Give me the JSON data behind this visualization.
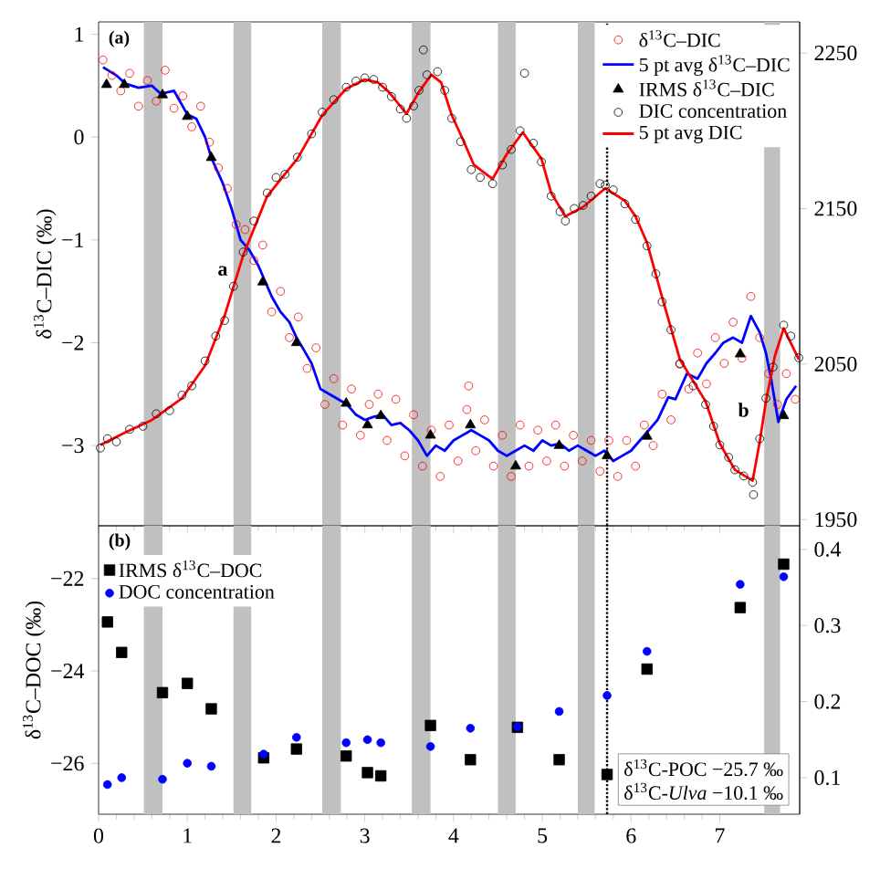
{
  "chart_data": [
    {
      "type": "line",
      "ylabel": "δ$^{13}$C–DIC (‰)",
      "xlim": [
        0,
        7.9
      ],
      "xticks": [
        0,
        1,
        2,
        3,
        4,
        5,
        6,
        7
      ],
      "ylim": [
        -3.78,
        1.12
      ],
      "yticks": [
        1,
        0,
        {
          "value": -1,
          "label": "−1"
        },
        {
          "value": -2,
          "label": "−2"
        },
        {
          "value": -3,
          "label": "−3"
        }
      ],
      "y2lim": [
        1946,
        2270
      ],
      "y2ticks": [
        1950,
        2050,
        2150,
        2250
      ],
      "tick_labels": "y",
      "legend": "top right",
      "annotations": [
        "(a)",
        "a",
        "b"
      ],
      "bands": [
        {
          "axis": "x",
          "from": 0.51,
          "to": 0.72,
          "color": "#c0c0c0"
        },
        {
          "axis": "x",
          "from": 1.52,
          "to": 1.72,
          "color": "#c0c0c0"
        },
        {
          "axis": "x",
          "from": 2.52,
          "to": 2.73,
          "color": "#c0c0c0"
        },
        {
          "axis": "x",
          "from": 3.53,
          "to": 3.74,
          "color": "#c0c0c0"
        },
        {
          "axis": "x",
          "from": 4.5,
          "to": 4.7,
          "color": "#c0c0c0"
        },
        {
          "axis": "x",
          "from": 5.4,
          "to": 5.59,
          "color": "#c0c0c0"
        },
        {
          "axis": "x",
          "from": 7.5,
          "to": 7.68,
          "color": "#c0c0c0"
        }
      ],
      "ref_lines": [
        {
          "axis": "x",
          "value": 5.73,
          "color": "#000000",
          "line_style": "dotted"
        }
      ],
      "series": [
        {
          "name": "δ$^{13}$C–DIC",
          "type": "scatter",
          "marker": "circle",
          "color": "#ff0000",
          "x": [
            0.05,
            0.15,
            0.25,
            0.35,
            0.45,
            0.55,
            0.65,
            0.75,
            0.85,
            0.95,
            1.05,
            1.15,
            1.25,
            1.35,
            1.45,
            1.55,
            1.65,
            1.75,
            1.85,
            1.95,
            2.05,
            2.15,
            2.25,
            2.35,
            2.45,
            2.55,
            2.65,
            2.75,
            2.85,
            2.95,
            3.05,
            3.15,
            3.25,
            3.35,
            3.45,
            3.55,
            3.65,
            3.75,
            3.85,
            3.95,
            4.05,
            4.15,
            4.17,
            4.25,
            4.35,
            4.45,
            4.55,
            4.65,
            4.75,
            4.85,
            4.95,
            5.05,
            5.15,
            5.25,
            5.35,
            5.45,
            5.55,
            5.65,
            5.75,
            5.85,
            5.95,
            6.05,
            6.15,
            6.25,
            6.35,
            6.45,
            6.55,
            6.65,
            6.75,
            6.85,
            6.95,
            7.05,
            7.15,
            7.25,
            7.35,
            7.45,
            7.55,
            7.65,
            7.75,
            7.85
          ],
          "values": [
            0.75,
            0.6,
            0.45,
            0.62,
            0.3,
            0.55,
            0.35,
            0.65,
            0.28,
            0.4,
            0.1,
            0.3,
            -0.05,
            -0.3,
            -0.5,
            -0.85,
            -0.9,
            -1.2,
            -1.05,
            -1.7,
            -1.5,
            -1.95,
            -1.75,
            -2.25,
            -2.05,
            -2.6,
            -2.35,
            -2.8,
            -2.45,
            -2.9,
            -2.6,
            -2.5,
            -2.95,
            -2.55,
            -3.1,
            -2.7,
            -3.2,
            -2.85,
            -3.3,
            -2.8,
            -3.15,
            -2.65,
            -2.42,
            -3.05,
            -2.75,
            -3.2,
            -2.9,
            -3.3,
            -2.8,
            -3.2,
            -2.85,
            -3.15,
            -2.8,
            -3.2,
            -2.9,
            -3.15,
            -2.95,
            -3.25,
            -2.95,
            -3.3,
            -2.95,
            -3.2,
            -2.8,
            -3.0,
            -2.5,
            -2.75,
            -2.2,
            -2.45,
            -2.1,
            -2.4,
            -1.95,
            -2.2,
            -1.8,
            -2.15,
            -1.55,
            -1.95,
            -2.3,
            -2.6,
            -2.3,
            -2.55
          ]
        },
        {
          "name": "5 pt avg δ$^{13}$C–DIC",
          "type": "line",
          "marker": "none",
          "color": "#0000ff",
          "x": [
            0.05,
            0.2,
            0.3,
            0.45,
            0.6,
            0.7,
            0.85,
            1.0,
            1.1,
            1.2,
            1.27,
            1.4,
            1.5,
            1.6,
            1.7,
            1.8,
            1.85,
            1.95,
            2.05,
            2.15,
            2.23,
            2.3,
            2.4,
            2.5,
            2.6,
            2.7,
            2.8,
            2.9,
            3.0,
            3.1,
            3.2,
            3.3,
            3.4,
            3.5,
            3.6,
            3.7,
            3.8,
            3.9,
            4.0,
            4.1,
            4.2,
            4.3,
            4.4,
            4.5,
            4.6,
            4.7,
            4.8,
            4.9,
            5.0,
            5.1,
            5.2,
            5.3,
            5.4,
            5.5,
            5.6,
            5.7,
            5.8,
            5.9,
            6.0,
            6.1,
            6.2,
            6.3,
            6.42,
            6.5,
            6.63,
            6.75,
            6.85,
            6.95,
            7.04,
            7.15,
            7.25,
            7.35,
            7.45,
            7.52,
            7.58,
            7.66,
            7.75,
            7.86
          ],
          "values": [
            0.68,
            0.6,
            0.52,
            0.48,
            0.5,
            0.42,
            0.45,
            0.22,
            0.18,
            0.0,
            -0.2,
            -0.45,
            -0.7,
            -1.0,
            -1.1,
            -1.25,
            -1.35,
            -1.55,
            -1.7,
            -1.8,
            -1.95,
            -2.05,
            -2.2,
            -2.45,
            -2.5,
            -2.55,
            -2.6,
            -2.7,
            -2.75,
            -2.72,
            -2.7,
            -2.8,
            -2.78,
            -2.85,
            -2.95,
            -3.1,
            -3.0,
            -3.05,
            -2.95,
            -2.9,
            -2.85,
            -2.9,
            -2.95,
            -3.05,
            -3.1,
            -3.05,
            -3.0,
            -3.05,
            -2.95,
            -3.0,
            -2.98,
            -3.05,
            -3.0,
            -3.05,
            -3.1,
            -3.05,
            -3.15,
            -3.1,
            -3.05,
            -2.95,
            -2.85,
            -2.75,
            -2.53,
            -2.55,
            -2.3,
            -2.35,
            -2.2,
            -2.1,
            -2.0,
            -1.95,
            -2.0,
            -1.74,
            -1.9,
            -2.1,
            -2.36,
            -2.77,
            -2.55,
            -2.42
          ]
        },
        {
          "name": "IRMS δ$^{13}$C–DIC",
          "type": "scatter",
          "marker": "triangle",
          "color": "#000000",
          "x": [
            0.09,
            0.29,
            0.72,
            1.0,
            1.27,
            1.85,
            2.23,
            2.79,
            3.03,
            3.18,
            3.74,
            4.19,
            4.7,
            5.19,
            5.73,
            6.18,
            7.23,
            7.72
          ],
          "values": [
            0.51,
            0.51,
            0.41,
            0.2,
            -0.2,
            -1.41,
            -2.0,
            -2.59,
            -2.8,
            -2.71,
            -2.9,
            -2.8,
            -3.2,
            -3.0,
            -3.1,
            -2.91,
            -2.11,
            -2.71
          ]
        },
        {
          "name": "DIC concentration",
          "type": "scatter",
          "marker": "circle",
          "color": "#000000",
          "axis": "y2",
          "x": [
            0.02,
            0.1,
            0.2,
            0.35,
            0.5,
            0.65,
            0.8,
            0.94,
            1.05,
            1.2,
            1.32,
            1.42,
            1.52,
            1.63,
            1.75,
            1.9,
            2.0,
            2.1,
            2.24,
            2.4,
            2.52,
            2.65,
            2.79,
            2.9,
            3.0,
            3.1,
            3.2,
            3.3,
            3.4,
            3.47,
            3.55,
            3.61,
            3.66,
            3.7,
            3.82,
            3.9,
            3.98,
            4.08,
            4.2,
            4.3,
            4.44,
            4.55,
            4.65,
            4.75,
            4.8,
            4.9,
            4.99,
            5.1,
            5.2,
            5.26,
            5.36,
            5.46,
            5.55,
            5.65,
            5.71,
            5.8,
            5.93,
            6.05,
            6.18,
            6.28,
            6.35,
            6.45,
            6.55,
            6.7,
            6.84,
            6.93,
            7.0,
            7.1,
            7.17,
            7.27,
            7.37,
            7.38,
            7.45,
            7.52,
            7.6,
            7.72,
            7.8,
            7.89
          ],
          "values": [
            1996,
            2002,
            2000,
            2008,
            2010,
            2018,
            2020,
            2030,
            2036,
            2052,
            2068,
            2078,
            2100,
            2122,
            2142,
            2160,
            2170,
            2172,
            2183,
            2198,
            2212,
            2220,
            2228,
            2232,
            2234,
            2233,
            2228,
            2222,
            2214,
            2208,
            2216,
            2226,
            2252,
            2236,
            2238,
            2226,
            2208,
            2193,
            2175,
            2170,
            2166,
            2178,
            2188,
            2200,
            2237,
            2192,
            2180,
            2158,
            2148,
            2142,
            2150,
            2152,
            2158,
            2166,
            2165,
            2162,
            2153,
            2143,
            2126,
            2108,
            2090,
            2072,
            2050,
            2036,
            2024,
            2010,
            1998,
            1990,
            1982,
            1978,
            1974,
            1966,
            2002,
            2028,
            2048,
            2075,
            2068,
            2054
          ]
        },
        {
          "name": "5 pt avg DIC",
          "type": "line",
          "marker": "none",
          "color": "#ff0000",
          "axis": "y2",
          "x": [
            0.02,
            0.3,
            0.6,
            0.94,
            1.2,
            1.42,
            1.63,
            1.9,
            2.24,
            2.52,
            2.79,
            3.0,
            3.15,
            3.27,
            3.47,
            3.61,
            3.75,
            3.86,
            3.98,
            4.1,
            4.23,
            4.44,
            4.6,
            4.78,
            4.99,
            5.1,
            5.26,
            5.46,
            5.71,
            5.93,
            6.05,
            6.18,
            6.35,
            6.55,
            6.84,
            7.0,
            7.17,
            7.37,
            7.45,
            7.52,
            7.62,
            7.72,
            7.89
          ],
          "values": [
            1998,
            2006,
            2014,
            2028,
            2049,
            2081,
            2120,
            2158,
            2182,
            2210,
            2227,
            2233,
            2231,
            2225,
            2211,
            2225,
            2236,
            2231,
            2210,
            2195,
            2178,
            2169,
            2185,
            2199,
            2182,
            2160,
            2145,
            2151,
            2163,
            2155,
            2145,
            2128,
            2093,
            2053,
            2026,
            1999,
            1982,
            1975,
            2000,
            2026,
            2055,
            2073,
            2053
          ]
        }
      ]
    },
    {
      "type": "scatter",
      "ylabel": "δ$^{13}$C–DOC (‰)",
      "xlim": [
        0,
        7.9
      ],
      "xticks": [
        0,
        1,
        2,
        3,
        4,
        5,
        6,
        7
      ],
      "ylim": [
        -27.1,
        -20.86
      ],
      "yticks": [
        {
          "value": -22,
          "label": "−22"
        },
        {
          "value": -24,
          "label": "−24"
        },
        {
          "value": -26,
          "label": "−26"
        }
      ],
      "y2lim": [
        0.052,
        0.431
      ],
      "y2ticks": [
        0.1,
        0.2,
        0.3,
        0.4
      ],
      "legend": "top left",
      "annotations": [
        "(b)",
        "δ$^{13}$C-POC −25.7 ‰",
        "δ$^{13}$C-*Ulva* −10.1 ‰"
      ],
      "bands": [
        {
          "axis": "x",
          "from": 0.51,
          "to": 0.72,
          "color": "#c0c0c0"
        },
        {
          "axis": "x",
          "from": 1.52,
          "to": 1.72,
          "color": "#c0c0c0"
        },
        {
          "axis": "x",
          "from": 2.52,
          "to": 2.73,
          "color": "#c0c0c0"
        },
        {
          "axis": "x",
          "from": 3.53,
          "to": 3.74,
          "color": "#c0c0c0"
        },
        {
          "axis": "x",
          "from": 4.5,
          "to": 4.7,
          "color": "#c0c0c0"
        },
        {
          "axis": "x",
          "from": 5.4,
          "to": 5.59,
          "color": "#c0c0c0"
        },
        {
          "axis": "x",
          "from": 7.5,
          "to": 7.68,
          "color": "#c0c0c0"
        }
      ],
      "ref_lines": [
        {
          "axis": "x",
          "value": 5.73,
          "color": "#000000",
          "line_style": "dotted"
        }
      ],
      "x": [
        0.1,
        0.26,
        0.72,
        1.0,
        1.27,
        1.86,
        2.23,
        2.79,
        3.03,
        3.18,
        3.74,
        4.19,
        4.72,
        5.19,
        5.73,
        6.18,
        7.23,
        7.72
      ],
      "series": [
        {
          "name": "IRMS δ$^{13}$C–DOC",
          "marker": "square",
          "color": "#000000",
          "values": [
            -22.94,
            -23.6,
            -24.47,
            -24.27,
            -24.82,
            -25.88,
            -25.69,
            -25.84,
            -26.2,
            -26.27,
            -25.18,
            -25.92,
            -25.22,
            -25.92,
            -26.24,
            -23.96,
            -22.63,
            -21.69
          ]
        },
        {
          "name": "DOC concentration",
          "marker": "circle",
          "color": "#0000ff",
          "axis": "y2",
          "values": [
            0.091,
            0.1,
            0.098,
            0.119,
            0.115,
            0.131,
            0.153,
            0.146,
            0.15,
            0.146,
            0.141,
            0.165,
            0.167,
            0.187,
            0.208,
            0.266,
            0.354,
            0.364
          ]
        }
      ]
    }
  ]
}
